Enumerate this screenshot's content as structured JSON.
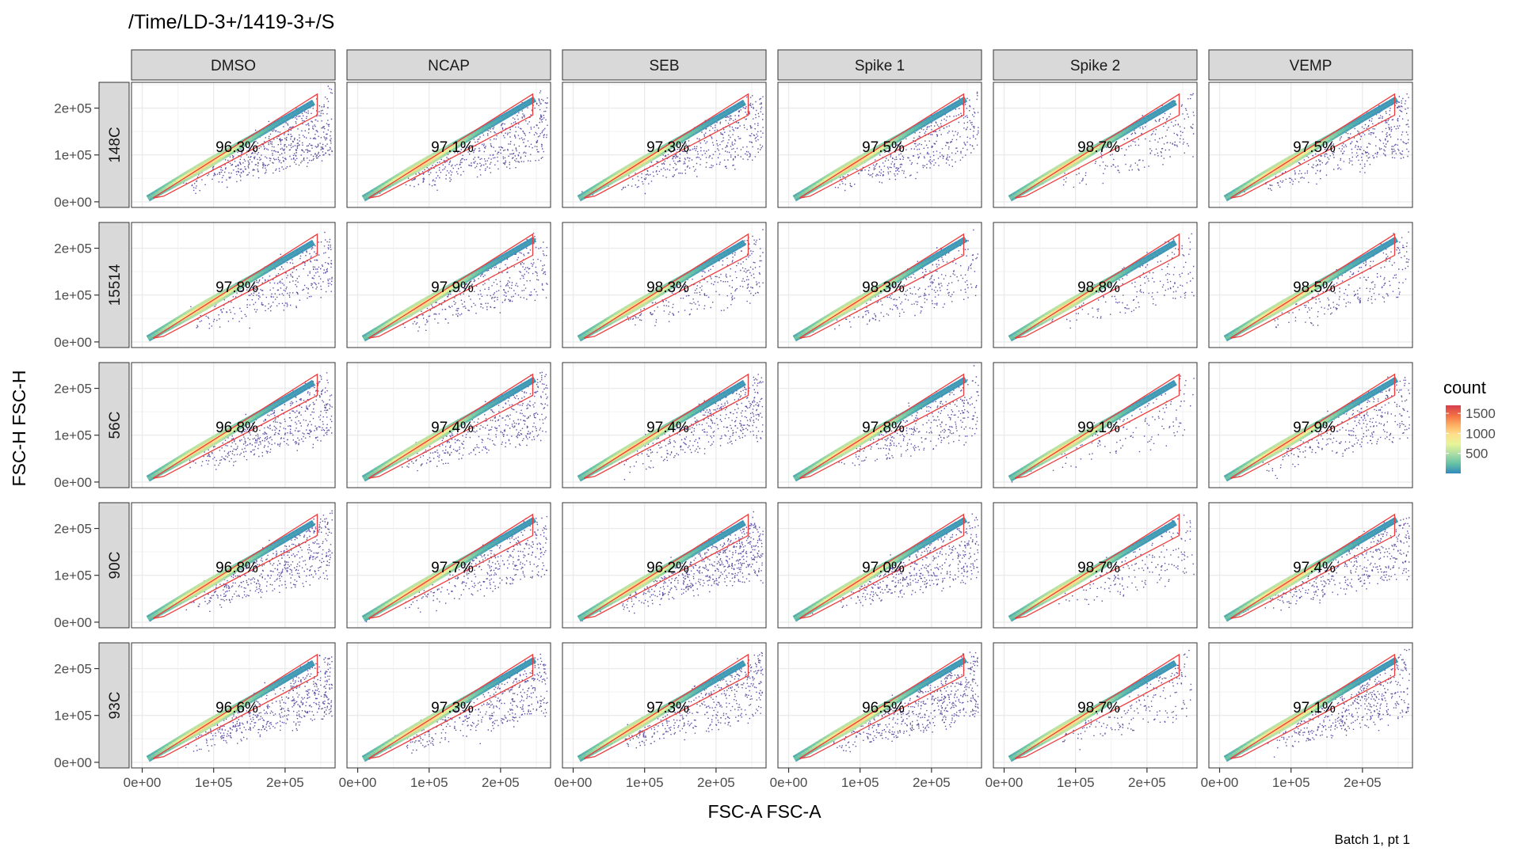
{
  "chart_data": {
    "type": "scatter",
    "subtype": "faceted 2D density (hexbin) plot with polygon gate",
    "title": "/Time/LD-3+/1419-3+/S",
    "xlabel": "FSC-A FSC-A",
    "ylabel": "FSC-H FSC-H",
    "caption": "Batch 1, pt 1",
    "xlim": [
      -15000,
      270000
    ],
    "ylim": [
      -12000,
      255000
    ],
    "x_ticks": [
      "0e+00",
      "1e+05",
      "2e+05"
    ],
    "x_tick_values": [
      0,
      100000,
      200000
    ],
    "y_ticks": [
      "0e+00",
      "1e+05",
      "2e+05"
    ],
    "y_tick_values": [
      0,
      100000,
      200000
    ],
    "grid": true,
    "columns": [
      "DMSO",
      "NCAP",
      "SEB",
      "Spike 1",
      "Spike 2",
      "VEMP"
    ],
    "rows": [
      "148C",
      "15514",
      "56C",
      "90C",
      "93C"
    ],
    "gate_percent": [
      [
        "96.3%",
        "97.1%",
        "97.3%",
        "97.5%",
        "98.7%",
        "97.5%"
      ],
      [
        "97.8%",
        "97.9%",
        "98.3%",
        "98.3%",
        "98.8%",
        "98.5%"
      ],
      [
        "96.8%",
        "97.4%",
        "97.4%",
        "97.8%",
        "99.1%",
        "97.9%"
      ],
      [
        "96.8%",
        "97.7%",
        "96.2%",
        "97.0%",
        "98.7%",
        "97.4%"
      ],
      [
        "96.6%",
        "97.3%",
        "97.3%",
        "96.5%",
        "98.7%",
        "97.1%"
      ]
    ],
    "gate_polygon": [
      [
        15000,
        8000
      ],
      [
        245000,
        230000
      ],
      [
        245000,
        185000
      ],
      [
        30000,
        12000
      ]
    ],
    "gate_color": "#ee3b3b",
    "legend": {
      "title": "count",
      "labels": [
        "1500",
        "1000",
        "500"
      ],
      "label_values": [
        1500,
        1000,
        500
      ],
      "range": [
        0,
        1700
      ],
      "colormap": [
        "#3288bd",
        "#66c2a5",
        "#abdda4",
        "#e6f598",
        "#fee08b",
        "#fdae61",
        "#f46d43",
        "#d53e4f"
      ],
      "position": "right"
    },
    "point_color_low": "#5e4fa2"
  }
}
